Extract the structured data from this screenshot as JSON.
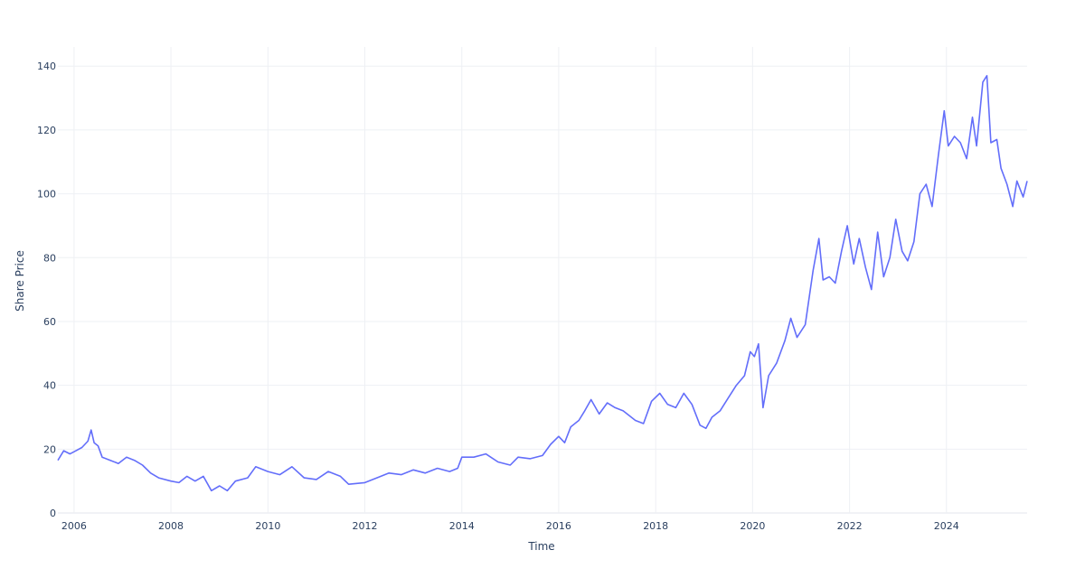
{
  "chart_data": {
    "type": "line",
    "xlabel": "Time",
    "ylabel": "Share Price",
    "xlim": [
      "2005-09-01",
      "2025-08-31"
    ],
    "ylim": [
      0,
      146
    ],
    "grid": true,
    "x_ticks": [
      "2006",
      "2008",
      "2010",
      "2012",
      "2014",
      "2016",
      "2018",
      "2020",
      "2022",
      "2024"
    ],
    "y_ticks": [
      0,
      20,
      40,
      60,
      80,
      100,
      120,
      140
    ],
    "series": [
      {
        "color": "#636efa",
        "points": [
          [
            "2005-09-01",
            16.5
          ],
          [
            "2005-10-15",
            19.5
          ],
          [
            "2005-12-01",
            18.5
          ],
          [
            "2006-01-15",
            19.5
          ],
          [
            "2006-03-01",
            20.5
          ],
          [
            "2006-04-15",
            22.5
          ],
          [
            "2006-05-10",
            26.0
          ],
          [
            "2006-06-01",
            22.0
          ],
          [
            "2006-07-01",
            21.0
          ],
          [
            "2006-08-01",
            17.5
          ],
          [
            "2006-10-01",
            16.5
          ],
          [
            "2006-12-01",
            15.5
          ],
          [
            "2007-02-01",
            17.5
          ],
          [
            "2007-04-01",
            16.5
          ],
          [
            "2007-06-01",
            15.0
          ],
          [
            "2007-08-01",
            12.5
          ],
          [
            "2007-10-01",
            11.0
          ],
          [
            "2008-01-01",
            10.0
          ],
          [
            "2008-03-01",
            9.5
          ],
          [
            "2008-05-01",
            11.5
          ],
          [
            "2008-07-01",
            10.0
          ],
          [
            "2008-09-01",
            11.5
          ],
          [
            "2008-11-01",
            7.0
          ],
          [
            "2009-01-01",
            8.5
          ],
          [
            "2009-03-01",
            7.0
          ],
          [
            "2009-05-01",
            10.0
          ],
          [
            "2009-08-01",
            11.0
          ],
          [
            "2009-10-01",
            14.5
          ],
          [
            "2010-01-01",
            13.0
          ],
          [
            "2010-04-01",
            12.0
          ],
          [
            "2010-07-01",
            14.5
          ],
          [
            "2010-10-01",
            11.0
          ],
          [
            "2011-01-01",
            10.5
          ],
          [
            "2011-04-01",
            13.0
          ],
          [
            "2011-07-01",
            11.5
          ],
          [
            "2011-09-01",
            9.0
          ],
          [
            "2012-01-01",
            9.5
          ],
          [
            "2012-04-01",
            11.0
          ],
          [
            "2012-07-01",
            12.5
          ],
          [
            "2012-10-01",
            12.0
          ],
          [
            "2013-01-01",
            13.5
          ],
          [
            "2013-04-01",
            12.5
          ],
          [
            "2013-07-01",
            14.0
          ],
          [
            "2013-10-01",
            13.0
          ],
          [
            "2013-12-01",
            14.0
          ],
          [
            "2014-01-01",
            17.5
          ],
          [
            "2014-04-01",
            17.5
          ],
          [
            "2014-07-01",
            18.5
          ],
          [
            "2014-10-01",
            16.0
          ],
          [
            "2015-01-01",
            15.0
          ],
          [
            "2015-03-01",
            17.5
          ],
          [
            "2015-06-01",
            17.0
          ],
          [
            "2015-09-01",
            18.0
          ],
          [
            "2015-11-01",
            21.5
          ],
          [
            "2016-01-01",
            24.0
          ],
          [
            "2016-02-15",
            22.0
          ],
          [
            "2016-04-01",
            27.0
          ],
          [
            "2016-06-01",
            29.0
          ],
          [
            "2016-07-15",
            32.0
          ],
          [
            "2016-09-01",
            35.5
          ],
          [
            "2016-11-01",
            31.0
          ],
          [
            "2017-01-01",
            34.5
          ],
          [
            "2017-03-01",
            33.0
          ],
          [
            "2017-05-01",
            32.0
          ],
          [
            "2017-08-01",
            29.0
          ],
          [
            "2017-10-01",
            28.0
          ],
          [
            "2017-12-01",
            35.0
          ],
          [
            "2018-02-01",
            37.5
          ],
          [
            "2018-04-01",
            34.0
          ],
          [
            "2018-06-01",
            33.0
          ],
          [
            "2018-08-01",
            37.5
          ],
          [
            "2018-10-01",
            34.0
          ],
          [
            "2018-12-01",
            27.5
          ],
          [
            "2019-01-15",
            26.5
          ],
          [
            "2019-03-01",
            30.0
          ],
          [
            "2019-05-01",
            32.0
          ],
          [
            "2019-07-01",
            36.0
          ],
          [
            "2019-09-01",
            40.0
          ],
          [
            "2019-11-01",
            43.0
          ],
          [
            "2019-12-15",
            50.5
          ],
          [
            "2020-01-15",
            49.0
          ],
          [
            "2020-02-15",
            53.0
          ],
          [
            "2020-03-20",
            33.0
          ],
          [
            "2020-05-01",
            43.0
          ],
          [
            "2020-07-01",
            47.0
          ],
          [
            "2020-09-01",
            54.0
          ],
          [
            "2020-10-15",
            61.0
          ],
          [
            "2020-12-01",
            55.0
          ],
          [
            "2021-02-01",
            59.0
          ],
          [
            "2021-04-01",
            76.0
          ],
          [
            "2021-05-15",
            86.0
          ],
          [
            "2021-06-15",
            73.0
          ],
          [
            "2021-08-01",
            74.0
          ],
          [
            "2021-09-15",
            72.0
          ],
          [
            "2021-11-01",
            82.0
          ],
          [
            "2021-12-15",
            90.0
          ],
          [
            "2022-02-01",
            78.0
          ],
          [
            "2022-03-15",
            86.0
          ],
          [
            "2022-05-01",
            77.0
          ],
          [
            "2022-06-15",
            70.0
          ],
          [
            "2022-08-01",
            88.0
          ],
          [
            "2022-09-15",
            74.0
          ],
          [
            "2022-11-01",
            80.0
          ],
          [
            "2022-12-15",
            92.0
          ],
          [
            "2023-02-01",
            82.0
          ],
          [
            "2023-03-15",
            79.0
          ],
          [
            "2023-05-01",
            85.0
          ],
          [
            "2023-06-15",
            100.0
          ],
          [
            "2023-08-01",
            103.0
          ],
          [
            "2023-09-15",
            96.0
          ],
          [
            "2023-11-01",
            112.0
          ],
          [
            "2023-12-15",
            126.0
          ],
          [
            "2024-01-15",
            115.0
          ],
          [
            "2024-03-01",
            118.0
          ],
          [
            "2024-04-15",
            116.0
          ],
          [
            "2024-06-01",
            111.0
          ],
          [
            "2024-07-15",
            124.0
          ],
          [
            "2024-08-15",
            115.0
          ],
          [
            "2024-10-01",
            135.0
          ],
          [
            "2024-11-01",
            137.0
          ],
          [
            "2024-12-01",
            116.0
          ],
          [
            "2025-01-15",
            117.0
          ],
          [
            "2025-02-15",
            108.0
          ],
          [
            "2025-04-01",
            103.0
          ],
          [
            "2025-05-15",
            96.0
          ],
          [
            "2025-06-15",
            104.0
          ],
          [
            "2025-08-01",
            99.0
          ],
          [
            "2025-08-31",
            104.0
          ]
        ]
      }
    ]
  }
}
